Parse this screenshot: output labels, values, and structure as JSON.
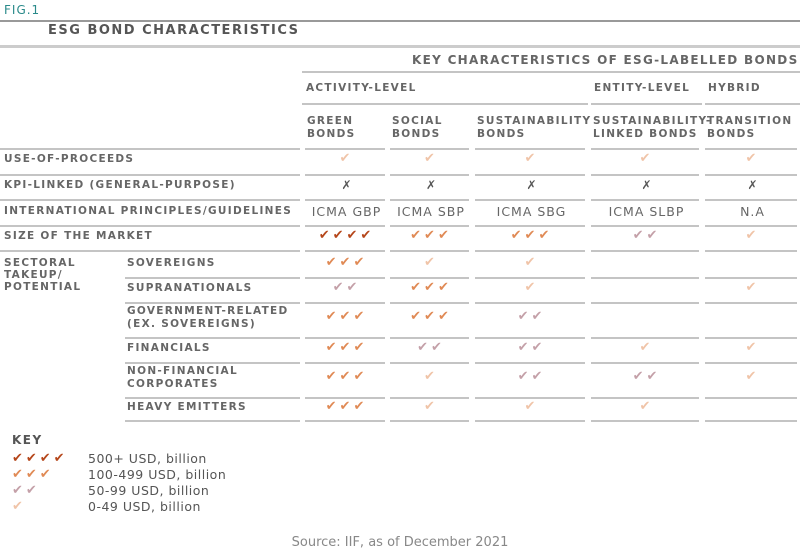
{
  "fig_label": "FIG.1",
  "title": "ESG BOND CHARACTERISTICS",
  "header": "KEY CHARACTERISTICS OF ESG-LABELLED BONDS",
  "groups": [
    "ACTIVITY-LEVEL",
    "ENTITY-LEVEL",
    "HYBRID"
  ],
  "columns": [
    [
      "GREEN",
      "BONDS"
    ],
    [
      "SOCIAL",
      "BONDS"
    ],
    [
      "SUSTAINABILITY",
      "BONDS"
    ],
    [
      "SUSTAINABILITY-",
      "LINKED BONDS"
    ],
    [
      "TRANSITION",
      "BONDS"
    ]
  ],
  "colors": {
    "4": "#b5461a",
    "3": "#e08a55",
    "2": "#c4a0a8",
    "1": "#f0c4a8"
  },
  "rows": [
    {
      "label": "USE-OF-PROCEEDS",
      "cells": [
        1,
        1,
        1,
        1,
        1
      ]
    },
    {
      "label": "KPI-LINKED (GENERAL-PURPOSE)",
      "cells": [
        "✗",
        "✗",
        "✗",
        "✗",
        "✗"
      ]
    },
    {
      "label": "INTERNATIONAL PRINCIPLES/GUIDELINES",
      "cells": [
        "ICMA GBP",
        "ICMA SBP",
        "ICMA SBG",
        "ICMA SLBP",
        "N.A"
      ]
    },
    {
      "label": "SIZE OF THE MARKET",
      "cells": [
        4,
        3,
        3,
        2,
        1
      ]
    }
  ],
  "sector_label": [
    "SECTORAL",
    "TAKEUP/",
    "POTENTIAL"
  ],
  "sectors": [
    {
      "label": [
        "SOVEREIGNS"
      ],
      "cells": [
        3,
        1,
        1,
        0,
        0
      ]
    },
    {
      "label": [
        "SUPRANATIONALS"
      ],
      "cells": [
        2,
        3,
        1,
        0,
        1
      ]
    },
    {
      "label": [
        "GOVERNMENT-RELATED",
        "(EX. SOVEREIGNS)"
      ],
      "cells": [
        3,
        3,
        2,
        0,
        0
      ]
    },
    {
      "label": [
        "FINANCIALS"
      ],
      "cells": [
        3,
        2,
        2,
        1,
        1
      ]
    },
    {
      "label": [
        "NON-FINANCIAL",
        "CORPORATES"
      ],
      "cells": [
        3,
        1,
        2,
        2,
        1
      ]
    },
    {
      "label": [
        "HEAVY EMITTERS"
      ],
      "cells": [
        3,
        1,
        1,
        1,
        0
      ]
    }
  ],
  "key": {
    "title": "KEY",
    "items": [
      {
        "level": 4,
        "label": "500+ USD, billion"
      },
      {
        "level": 3,
        "label": "100-499 USD, billion"
      },
      {
        "level": 2,
        "label": "50-99 USD, billion"
      },
      {
        "level": 1,
        "label": "0-49 USD, billion"
      }
    ]
  },
  "source": "Source: IIF, as of December 2021"
}
